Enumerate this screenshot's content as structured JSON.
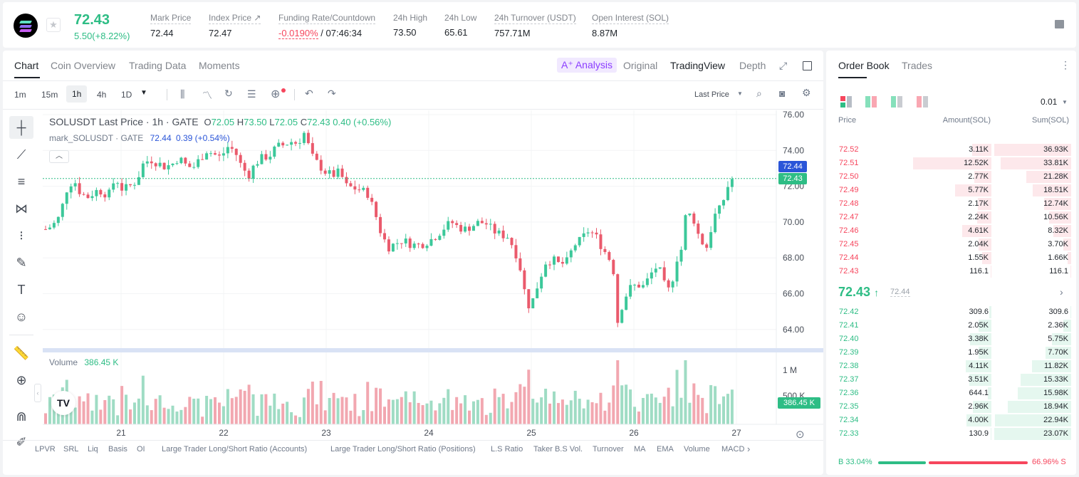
{
  "header": {
    "price": "72.43",
    "change": "5.50(+8.22%)",
    "stats": [
      {
        "label": "Mark Price",
        "value": "72.44"
      },
      {
        "label": "Index Price ↗",
        "value": "72.47"
      },
      {
        "label": "Funding Rate/Countdown",
        "value_red": "-0.0190%",
        "value": "/ 07:46:34"
      },
      {
        "label": "24h High",
        "value": "73.50"
      },
      {
        "label": "24h Low",
        "value": "65.61"
      },
      {
        "label": "24h Turnover (USDT)",
        "value": "757.71M"
      },
      {
        "label": "Open Interest (SOL)",
        "value": "8.87M"
      }
    ]
  },
  "chart_tabs": [
    "Chart",
    "Coin Overview",
    "Trading Data",
    "Moments"
  ],
  "view_tabs": {
    "ai": "A⁺ Analysis",
    "original": "Original",
    "tradingview": "TradingView",
    "depth": "Depth"
  },
  "timeframes": [
    "1m",
    "15m",
    "1h",
    "4h",
    "1D"
  ],
  "price_type": "Last Price",
  "legend": {
    "title": "SOLUSDT Last Price · 1h · GATE",
    "o_label": "O",
    "o": "72.05",
    "h_label": "H",
    "h": "73.50",
    "l_label": "L",
    "l": "72.05",
    "c_label": "C",
    "c": "72.43",
    "chg": "0.40 (+0.56%)",
    "mark_label": "mark_SOLUSDT · GATE",
    "mark_price": "72.44",
    "mark_chg": "0.39 (+0.54%)"
  },
  "volume": {
    "label": "Volume",
    "value": "386.45 K"
  },
  "price_axis": [
    "76.00",
    "74.00",
    "72.00",
    "70.00",
    "68.00",
    "66.00",
    "64.00"
  ],
  "volume_axis": [
    "1 M",
    "500 K"
  ],
  "date_axis": [
    "21",
    "22",
    "23",
    "24",
    "25",
    "26",
    "27"
  ],
  "price_tags": {
    "mark": "72.44",
    "last": "72.43",
    "volume": "386.45 K"
  },
  "indicators": [
    "LPVR",
    "SRL",
    "Liq",
    "Basis",
    "OI",
    "Large Trader Long/Short Ratio (Accounts)",
    "Large Trader Long/Short Ratio (Positions)",
    "L.S Ratio",
    "Taker B.S Vol.",
    "Turnover",
    "MA",
    "EMA",
    "Volume",
    "MACD"
  ],
  "orderbook": {
    "tabs": [
      "Order Book",
      "Trades"
    ],
    "precision": "0.01",
    "headers": [
      "Price",
      "Amount(SOL)",
      "Sum(SOL)"
    ],
    "asks": [
      {
        "price": "72.52",
        "amount": "3.11K",
        "sum": "36.93K",
        "amt_f": 0.25,
        "sum_f": 1.0
      },
      {
        "price": "72.51",
        "amount": "12.52K",
        "sum": "33.81K",
        "amt_f": 1.0,
        "sum_f": 0.92
      },
      {
        "price": "72.50",
        "amount": "2.77K",
        "sum": "21.28K",
        "amt_f": 0.22,
        "sum_f": 0.58
      },
      {
        "price": "72.49",
        "amount": "5.77K",
        "sum": "18.51K",
        "amt_f": 0.46,
        "sum_f": 0.5
      },
      {
        "price": "72.48",
        "amount": "2.17K",
        "sum": "12.74K",
        "amt_f": 0.17,
        "sum_f": 0.35
      },
      {
        "price": "72.47",
        "amount": "2.24K",
        "sum": "10.56K",
        "amt_f": 0.18,
        "sum_f": 0.29
      },
      {
        "price": "72.46",
        "amount": "4.61K",
        "sum": "8.32K",
        "amt_f": 0.37,
        "sum_f": 0.23
      },
      {
        "price": "72.45",
        "amount": "2.04K",
        "sum": "3.70K",
        "amt_f": 0.16,
        "sum_f": 0.1
      },
      {
        "price": "72.44",
        "amount": "1.55K",
        "sum": "1.66K",
        "amt_f": 0.12,
        "sum_f": 0.05
      },
      {
        "price": "72.43",
        "amount": "116.1",
        "sum": "116.1",
        "amt_f": 0.01,
        "sum_f": 0.01
      }
    ],
    "mid_price": "72.43",
    "mid_arrow": "↑",
    "mid_mark": "72.44",
    "bids": [
      {
        "price": "72.42",
        "amount": "309.6",
        "sum": "309.6",
        "amt_f": 0.03,
        "sum_f": 0.01
      },
      {
        "price": "72.41",
        "amount": "2.05K",
        "sum": "2.36K",
        "amt_f": 0.16,
        "sum_f": 0.1
      },
      {
        "price": "72.40",
        "amount": "3.38K",
        "sum": "5.75K",
        "amt_f": 0.27,
        "sum_f": 0.25
      },
      {
        "price": "72.39",
        "amount": "1.95K",
        "sum": "7.70K",
        "amt_f": 0.16,
        "sum_f": 0.33
      },
      {
        "price": "72.38",
        "amount": "4.11K",
        "sum": "11.82K",
        "amt_f": 0.33,
        "sum_f": 0.51
      },
      {
        "price": "72.37",
        "amount": "3.51K",
        "sum": "15.33K",
        "amt_f": 0.28,
        "sum_f": 0.66
      },
      {
        "price": "72.36",
        "amount": "644.1",
        "sum": "15.98K",
        "amt_f": 0.05,
        "sum_f": 0.69
      },
      {
        "price": "72.35",
        "amount": "2.96K",
        "sum": "18.94K",
        "amt_f": 0.24,
        "sum_f": 0.82
      },
      {
        "price": "72.34",
        "amount": "4.00K",
        "sum": "22.94K",
        "amt_f": 0.32,
        "sum_f": 0.99
      },
      {
        "price": "72.33",
        "amount": "130.9",
        "sum": "23.07K",
        "amt_f": 0.01,
        "sum_f": 1.0
      }
    ],
    "ratio_b": "B 33.04%",
    "ratio_s": "66.96% S",
    "buy_fraction": 0.3304
  },
  "colors": {
    "up": "#2ebd85",
    "down": "#f6465d",
    "up_candle": "#3cc89a",
    "down_candle": "#ea5a6c",
    "mark_tag": "#2a55d8"
  }
}
